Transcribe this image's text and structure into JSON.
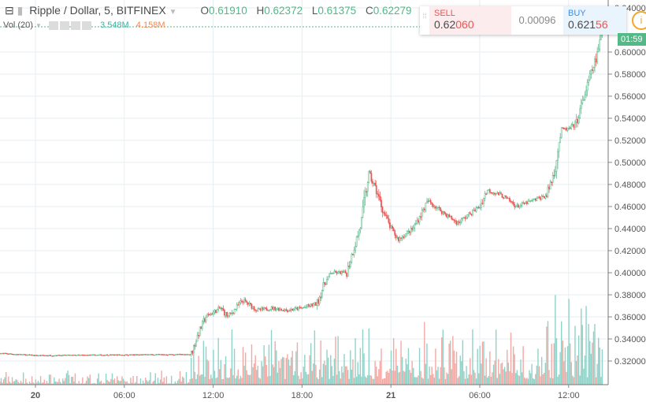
{
  "header": {
    "symbol": "Ripple / Dollar, 5, BITFINEX",
    "open_label": "O",
    "open": "0.61910",
    "high_label": "H",
    "high": "0.62372",
    "low_label": "L",
    "low": "0.61375",
    "close_label": "C",
    "close": "0.62279"
  },
  "volume_legend": {
    "label": "Vol (20)",
    "value_up": "3.548M",
    "value_down": "4.158M"
  },
  "trade_panel": {
    "sell_label": "SELL",
    "sell_price_main": "0.62",
    "sell_price_tail": "060",
    "spread": "0.00096",
    "buy_label": "BUY",
    "buy_price_main": "0.621",
    "buy_price_tail": "56"
  },
  "countdown": "01:59",
  "colors": {
    "up": "#53b987",
    "down": "#ef5350",
    "vol_up": "#8fd3c8",
    "vol_down": "#f4a8a4",
    "grid": "#e6eef3"
  },
  "chart_data": {
    "type": "candlestick",
    "interval": "5",
    "ylim": [
      0.31,
      0.645
    ],
    "y_ticks": [
      "0.64000",
      "0.60000",
      "0.58000",
      "0.56000",
      "0.54000",
      "0.52000",
      "0.50000",
      "0.48000",
      "0.46000",
      "0.44000",
      "0.42000",
      "0.40000",
      "0.38000",
      "0.36000",
      "0.34000",
      "0.32000"
    ],
    "x_ticks": [
      "20",
      "06:00",
      "12:00",
      "18:00",
      "21",
      "06:00",
      "12:00"
    ],
    "price_path": [
      [
        "19 21:36",
        0.327
      ],
      [
        "20 00:00",
        0.325
      ],
      [
        "20 10:30",
        0.326
      ],
      [
        "20 11:00",
        0.345
      ],
      [
        "20 11:30",
        0.36
      ],
      [
        "20 12:30",
        0.368
      ],
      [
        "20 13:00",
        0.36
      ],
      [
        "20 14:00",
        0.375
      ],
      [
        "20 15:00",
        0.366
      ],
      [
        "20 16:00",
        0.368
      ],
      [
        "20 17:00",
        0.366
      ],
      [
        "20 18:00",
        0.368
      ],
      [
        "20 19:00",
        0.372
      ],
      [
        "20 19:30",
        0.39
      ],
      [
        "20 20:00",
        0.4
      ],
      [
        "20 21:00",
        0.4
      ],
      [
        "20 22:00",
        0.445
      ],
      [
        "20 22:30",
        0.49
      ],
      [
        "20 23:00",
        0.475
      ],
      [
        "20 23:30",
        0.455
      ],
      [
        "21 00:00",
        0.44
      ],
      [
        "21 00:30",
        0.43
      ],
      [
        "21 01:30",
        0.44
      ],
      [
        "21 02:30",
        0.465
      ],
      [
        "21 03:30",
        0.455
      ],
      [
        "21 04:30",
        0.445
      ],
      [
        "21 05:30",
        0.455
      ],
      [
        "21 06:00",
        0.46
      ],
      [
        "21 06:30",
        0.475
      ],
      [
        "21 07:30",
        0.47
      ],
      [
        "21 08:30",
        0.46
      ],
      [
        "21 09:30",
        0.465
      ],
      [
        "21 10:30",
        0.47
      ],
      [
        "21 11:00",
        0.49
      ],
      [
        "21 11:30",
        0.53
      ],
      [
        "21 12:00",
        0.53
      ],
      [
        "21 12:30",
        0.535
      ],
      [
        "21 13:30",
        0.58
      ],
      [
        "21 14:00",
        0.6
      ],
      [
        "21 14:18",
        0.6228
      ]
    ]
  }
}
